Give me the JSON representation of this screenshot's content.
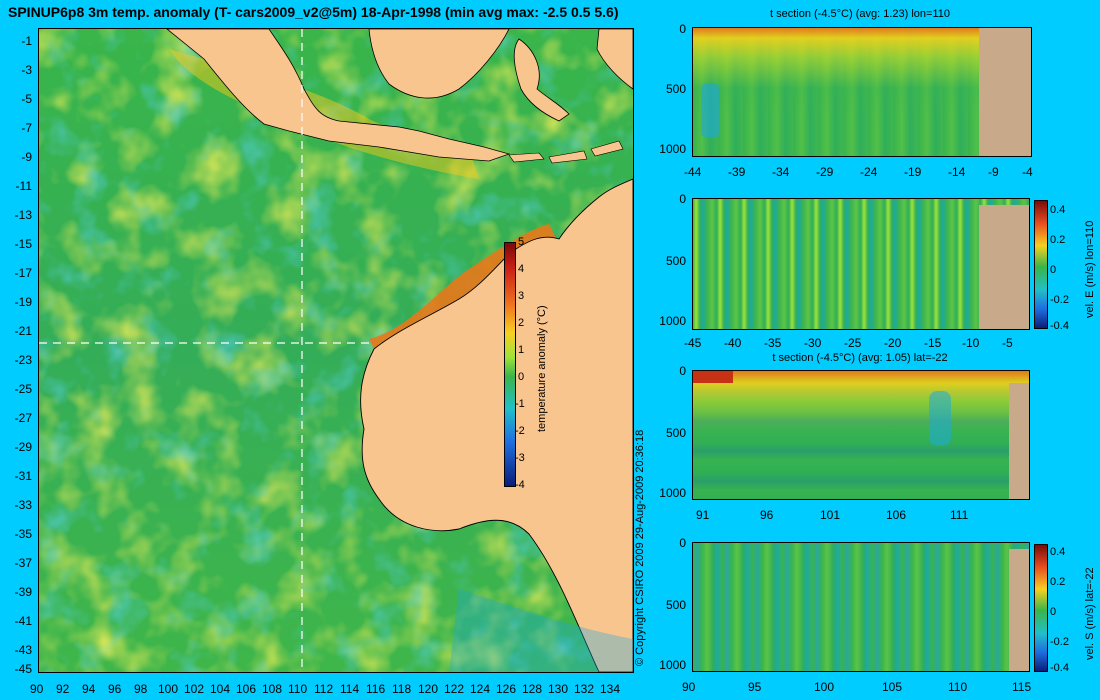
{
  "title": "SPINUP6p8 3m temp. anomaly (T- cars2009_v2@5m) 18-Apr-1998 (min avg max: -2.5 0.5 5.6)",
  "copyright": "© Copyright CSIRO 2009   29-Aug-2009 20:36:18",
  "colors": {
    "background": "#00ccff",
    "ocean_base": "#2fb14a",
    "warm": "#f2e21a",
    "hot": "#e8781a",
    "cold": "#1ea9e0",
    "land_map": "#f9c58e",
    "land_section": "#c8a98a"
  },
  "map": {
    "lat_ticks": [
      "-1",
      "-3",
      "-5",
      "-7",
      "-9",
      "-11",
      "-13",
      "-15",
      "-17",
      "-19",
      "-21",
      "-23",
      "-25",
      "-27",
      "-29",
      "-31",
      "-33",
      "-35",
      "-37",
      "-39",
      "-41",
      "-43",
      "-45"
    ],
    "lon_ticks": [
      "90",
      "92",
      "94",
      "96",
      "98",
      "100",
      "102",
      "104",
      "106",
      "108",
      "110",
      "112",
      "114",
      "116",
      "118",
      "120",
      "122",
      "124",
      "126",
      "128",
      "130",
      "132",
      "134"
    ],
    "colorbar": {
      "label": "temperature anomaly (°C)",
      "ticks": [
        "5",
        "4",
        "3",
        "2",
        "1",
        "0",
        "-1",
        "-2",
        "-3",
        "-4"
      ]
    }
  },
  "panels": [
    {
      "title": "t section (-4.5°C) (avg: 1.23) lon=110",
      "y_ticks": [
        "0",
        "500",
        "1000"
      ],
      "x_ticks": [
        "-44",
        "-39",
        "-34",
        "-29",
        "-24",
        "-19",
        "-14",
        "-9",
        "-4"
      ]
    },
    {
      "title": "",
      "y_ticks": [
        "0",
        "500",
        "1000"
      ],
      "x_ticks": [
        "-45",
        "-40",
        "-35",
        "-30",
        "-25",
        "-20",
        "-15",
        "-10",
        "-5"
      ],
      "colorbar_label": "vel. E (m/s) lon=110",
      "colorbar_ticks": [
        "0.4",
        "0.2",
        "0",
        "-0.2",
        "-0.4"
      ]
    },
    {
      "title": "t section (-4.5°C) (avg: 1.05) lat=-22",
      "y_ticks": [
        "0",
        "500",
        "1000"
      ],
      "x_ticks": [
        "91",
        "96",
        "101",
        "106",
        "111"
      ]
    },
    {
      "title": "",
      "y_ticks": [
        "0",
        "500",
        "1000"
      ],
      "x_ticks": [
        "90",
        "95",
        "100",
        "105",
        "110",
        "115"
      ],
      "colorbar_label": "vel. S (m/s) lat=-22",
      "colorbar_ticks": [
        "0.4",
        "0.2",
        "0",
        "-0.2",
        "-0.4"
      ]
    }
  ]
}
